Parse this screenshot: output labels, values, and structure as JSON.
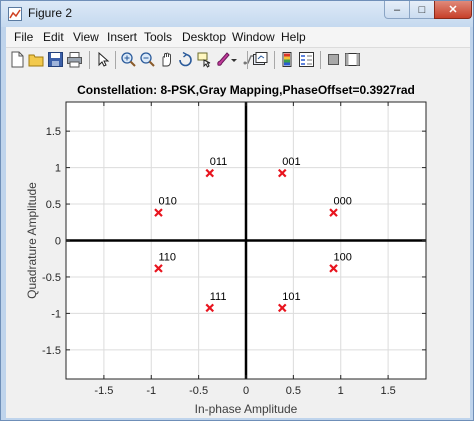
{
  "window": {
    "title": "Figure 2"
  },
  "menu": [
    "File",
    "Edit",
    "View",
    "Insert",
    "Tools",
    "Desktop",
    "Window",
    "Help"
  ],
  "toolbar_icons": [
    "new-figure-icon",
    "open-file-icon",
    "save-icon",
    "print-icon",
    "pointer-icon",
    "zoom-in-icon",
    "zoom-out-icon",
    "pan-icon",
    "rotate-3d-icon",
    "data-cursor-icon",
    "brush-icon",
    "link-plot-icon",
    "colorbar-icon",
    "legend-icon",
    "hide-plot-tools-icon",
    "show-plot-tools-icon"
  ],
  "colors": {
    "marker": "#e8141e",
    "grid": "#dcdcdc",
    "axis_origin": "#000000"
  },
  "chart_data": {
    "type": "scatter",
    "title": "Constellation: 8-PSK,Gray Mapping,PhaseOffset=0.3927rad",
    "xlabel": "In-phase Amplitude",
    "ylabel": "Quadrature Amplitude",
    "xlim": [
      -1.9,
      1.9
    ],
    "ylim": [
      -1.9,
      1.9
    ],
    "xticks": [
      -1.5,
      -1,
      -0.5,
      0,
      0.5,
      1,
      1.5
    ],
    "xtick_labels": [
      "-1.5",
      "-1",
      "-0.5",
      "0",
      "0.5",
      "1",
      "1.5"
    ],
    "yticks": [
      -1.5,
      -1,
      -0.5,
      0,
      0.5,
      1,
      1.5
    ],
    "ytick_labels": [
      "-1.5",
      "-1",
      "-0.5",
      "0",
      "0.5",
      "1",
      "1.5"
    ],
    "grid": true,
    "points": [
      {
        "label": "000",
        "x": 0.9239,
        "y": 0.3827
      },
      {
        "label": "001",
        "x": 0.3827,
        "y": 0.9239
      },
      {
        "label": "011",
        "x": -0.3827,
        "y": 0.9239
      },
      {
        "label": "010",
        "x": -0.9239,
        "y": 0.3827
      },
      {
        "label": "110",
        "x": -0.9239,
        "y": -0.3827
      },
      {
        "label": "111",
        "x": -0.3827,
        "y": -0.9239
      },
      {
        "label": "101",
        "x": 0.3827,
        "y": -0.9239
      },
      {
        "label": "100",
        "x": 0.9239,
        "y": -0.3827
      }
    ]
  }
}
